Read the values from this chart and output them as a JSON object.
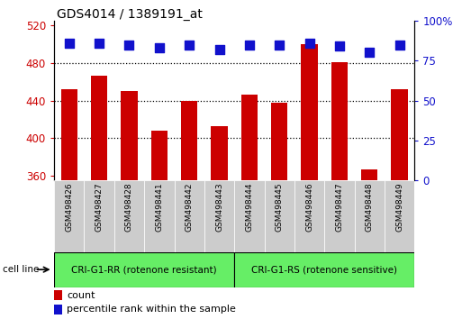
{
  "title": "GDS4014 / 1389191_at",
  "samples": [
    "GSM498426",
    "GSM498427",
    "GSM498428",
    "GSM498441",
    "GSM498442",
    "GSM498443",
    "GSM498444",
    "GSM498445",
    "GSM498446",
    "GSM498447",
    "GSM498448",
    "GSM498449"
  ],
  "counts": [
    452,
    466,
    450,
    408,
    440,
    413,
    446,
    438,
    500,
    481,
    367,
    452
  ],
  "percentile_ranks": [
    86,
    86,
    85,
    83,
    85,
    82,
    85,
    85,
    86,
    84,
    80,
    85
  ],
  "group1_label": "CRI-G1-RR (rotenone resistant)",
  "group2_label": "CRI-G1-RS (rotenone sensitive)",
  "group1_count": 6,
  "group2_count": 6,
  "ylim_left": [
    355,
    525
  ],
  "ylim_right": [
    0,
    100
  ],
  "yticks_left": [
    360,
    400,
    440,
    480,
    520
  ],
  "yticks_right": [
    0,
    25,
    50,
    75,
    100
  ],
  "bar_color": "#cc0000",
  "dot_color": "#1111cc",
  "group_color": "#66ee66",
  "bar_width": 0.55,
  "dot_size": 45,
  "grid_color": "black",
  "legend_count_label": "count",
  "legend_percentile_label": "percentile rank within the sample",
  "cell_line_label": "cell line",
  "xlabel_bg_color": "#cccccc"
}
